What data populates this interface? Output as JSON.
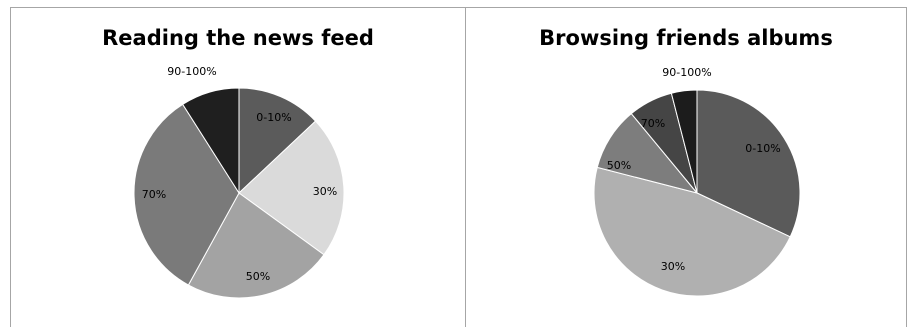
{
  "chart_data": [
    {
      "type": "pie",
      "title": "Reading the news feed",
      "start": "12 o'clock",
      "direction": "clockwise",
      "slices": [
        {
          "label": "0-10%",
          "value": 13,
          "color": "#5b5b5b"
        },
        {
          "label": "30%",
          "value": 22,
          "color": "#dadada"
        },
        {
          "label": "50%",
          "value": 23,
          "color": "#a3a3a3"
        },
        {
          "label": "70%",
          "value": 33,
          "color": "#7a7a7a"
        },
        {
          "label": "90-100%",
          "value": 9,
          "color": "#1f1f1f"
        }
      ]
    },
    {
      "type": "pie",
      "title": "Browsing friends albums",
      "start": "12 o'clock",
      "direction": "clockwise",
      "slices": [
        {
          "label": "0-10%",
          "value": 32,
          "color": "#5a5a5a"
        },
        {
          "label": "30%",
          "value": 47,
          "color": "#b0b0b0"
        },
        {
          "label": "50%",
          "value": 10,
          "color": "#7d7d7d"
        },
        {
          "label": "70%",
          "value": 7,
          "color": "#454545"
        },
        {
          "label": "90-100%",
          "value": 4,
          "color": "#1c1c1c"
        }
      ]
    }
  ]
}
